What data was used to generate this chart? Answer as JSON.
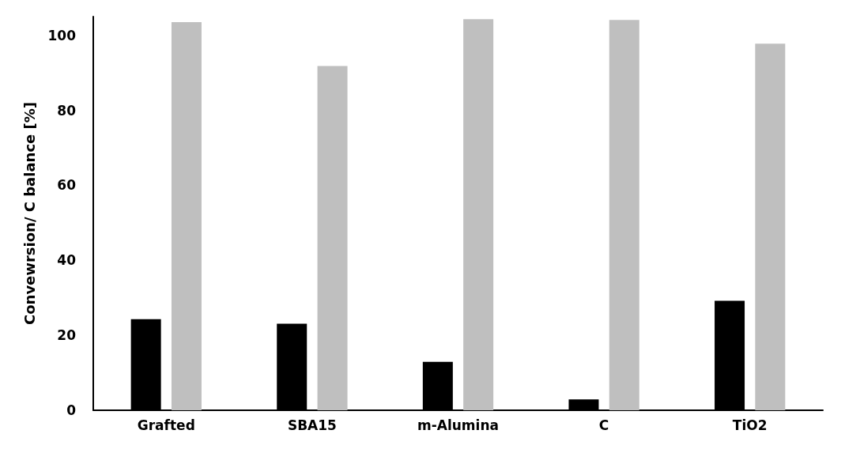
{
  "chart_data": {
    "type": "bar",
    "ylabel": "Convewrsion/ C balance [%]",
    "categories": [
      "Grafted",
      "SBA15",
      "m-Alumina",
      "C",
      "TiO2"
    ],
    "series": [
      {
        "color": "#000000",
        "values": [
          24.3,
          23.1,
          12.9,
          2.9,
          29.2
        ]
      },
      {
        "color": "#bfbfbf",
        "values": [
          103.5,
          91.8,
          104.3,
          104.1,
          97.8
        ]
      }
    ],
    "ylim": [
      0,
      105
    ],
    "yticks": [
      0,
      20,
      40,
      60,
      80,
      100
    ]
  }
}
